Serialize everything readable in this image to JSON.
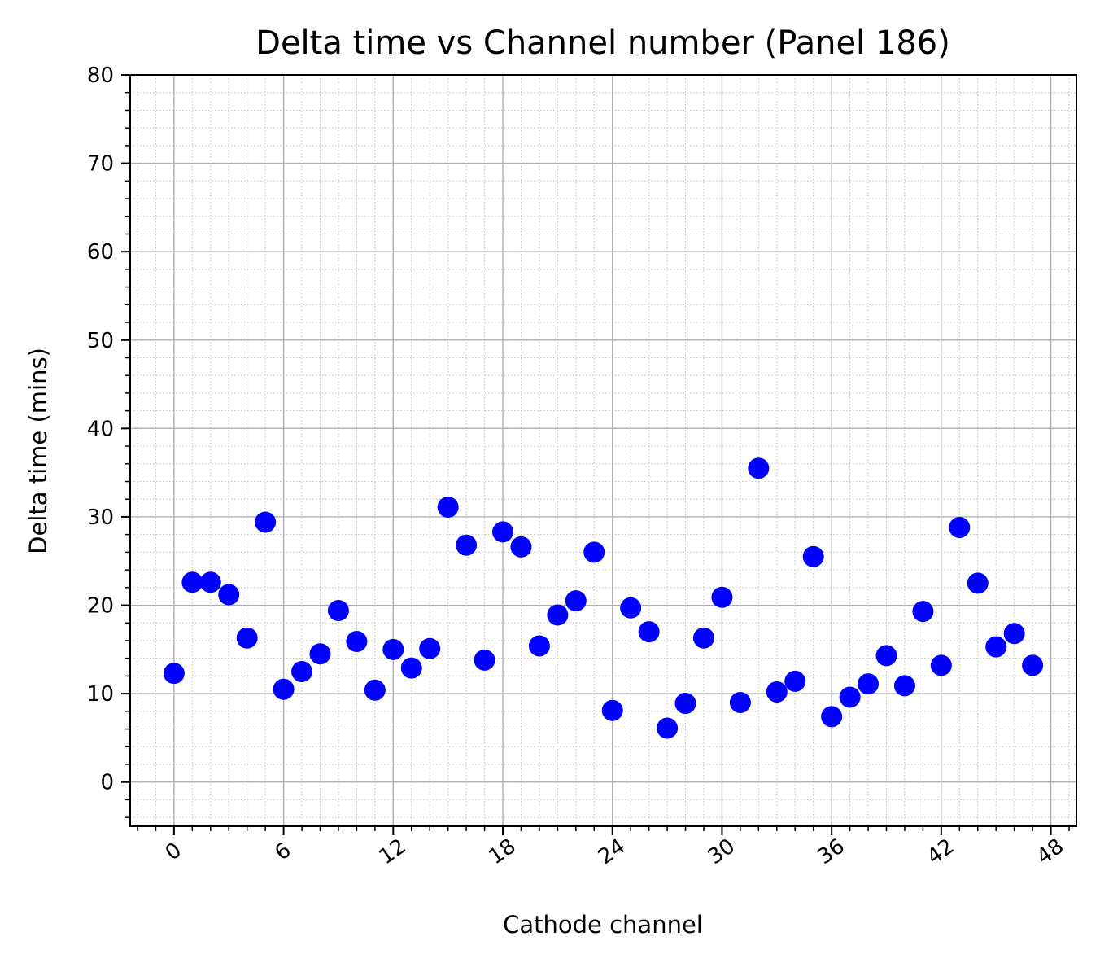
{
  "chart_data": {
    "type": "scatter",
    "title": "Delta time vs Channel number (Panel 186)",
    "xlabel": "Cathode channel",
    "ylabel": "Delta time (mins)",
    "xlim": [
      -2.4,
      49.4
    ],
    "ylim": [
      -5,
      80
    ],
    "x_ticks": [
      0,
      6,
      12,
      18,
      24,
      30,
      36,
      42,
      48
    ],
    "x_minor_step": 1,
    "y_ticks": [
      0,
      10,
      20,
      30,
      40,
      50,
      60,
      70,
      80
    ],
    "y_minor_step": 2,
    "grid": "major solid + minor dotted",
    "marker_color": "#0000ff",
    "series": [
      {
        "points": [
          {
            "x": 0,
            "y": 12.3
          },
          {
            "x": 1,
            "y": 22.6
          },
          {
            "x": 2,
            "y": 22.6
          },
          {
            "x": 3,
            "y": 21.2
          },
          {
            "x": 4,
            "y": 16.3
          },
          {
            "x": 5,
            "y": 29.4
          },
          {
            "x": 6,
            "y": 10.5
          },
          {
            "x": 7,
            "y": 12.5
          },
          {
            "x": 8,
            "y": 14.5
          },
          {
            "x": 9,
            "y": 19.4
          },
          {
            "x": 10,
            "y": 15.9
          },
          {
            "x": 11,
            "y": 10.4
          },
          {
            "x": 12,
            "y": 15.0
          },
          {
            "x": 13,
            "y": 12.9
          },
          {
            "x": 14,
            "y": 15.1
          },
          {
            "x": 15,
            "y": 31.1
          },
          {
            "x": 16,
            "y": 26.8
          },
          {
            "x": 17,
            "y": 13.8
          },
          {
            "x": 18,
            "y": 28.3
          },
          {
            "x": 19,
            "y": 26.6
          },
          {
            "x": 20,
            "y": 15.4
          },
          {
            "x": 21,
            "y": 18.9
          },
          {
            "x": 22,
            "y": 20.5
          },
          {
            "x": 23,
            "y": 26.0
          },
          {
            "x": 24,
            "y": 8.1
          },
          {
            "x": 25,
            "y": 19.7
          },
          {
            "x": 26,
            "y": 17.0
          },
          {
            "x": 27,
            "y": 6.1
          },
          {
            "x": 28,
            "y": 8.9
          },
          {
            "x": 29,
            "y": 16.3
          },
          {
            "x": 30,
            "y": 20.9
          },
          {
            "x": 31,
            "y": 9.0
          },
          {
            "x": 32,
            "y": 35.5
          },
          {
            "x": 33,
            "y": 10.2
          },
          {
            "x": 34,
            "y": 11.4
          },
          {
            "x": 35,
            "y": 25.5
          },
          {
            "x": 36,
            "y": 7.4
          },
          {
            "x": 37,
            "y": 9.6
          },
          {
            "x": 38,
            "y": 11.1
          },
          {
            "x": 39,
            "y": 14.3
          },
          {
            "x": 40,
            "y": 10.9
          },
          {
            "x": 41,
            "y": 19.3
          },
          {
            "x": 42,
            "y": 13.2
          },
          {
            "x": 43,
            "y": 28.8
          },
          {
            "x": 44,
            "y": 22.5
          },
          {
            "x": 45,
            "y": 15.3
          },
          {
            "x": 46,
            "y": 16.8
          },
          {
            "x": 47,
            "y": 13.2
          }
        ]
      }
    ]
  }
}
